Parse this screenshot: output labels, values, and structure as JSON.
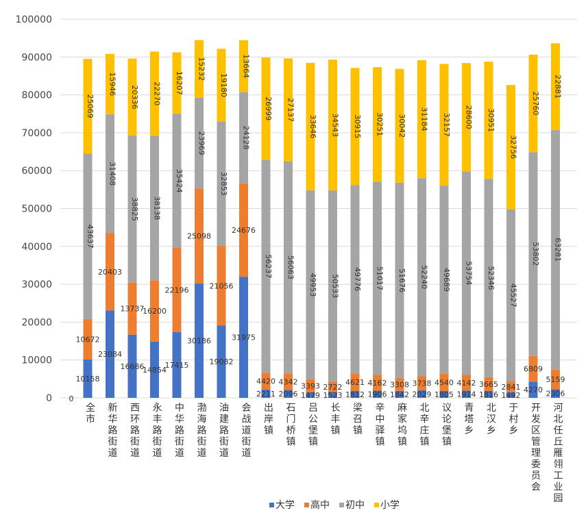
{
  "chart_data": {
    "type": "bar",
    "stacked": true,
    "title": "",
    "xlabel": "",
    "ylabel": "",
    "ylim": [
      0,
      100000
    ],
    "yticks": [
      0,
      10000,
      20000,
      30000,
      40000,
      50000,
      60000,
      70000,
      80000,
      90000,
      100000
    ],
    "grid": true,
    "legend_position": "bottom",
    "categories": [
      "全市",
      "新华路街道",
      "西环路街道",
      "永丰路街道",
      "中华路街道",
      "渤海路街道",
      "油建路街道",
      "会战道街道",
      "出岸镇",
      "石门桥镇",
      "吕公堡镇",
      "长丰镇",
      "梁召镇",
      "辛中驿镇",
      "麻家坞镇",
      "北辛庄镇",
      "议论堡镇",
      "青塔乡",
      "北汉乡",
      "于村乡",
      "开发区管理委员会",
      "河北任丘雁翎工业园"
    ],
    "series": [
      {
        "name": "大学",
        "color": "#4472c4",
        "values": [
          10158,
          23084,
          16686,
          14854,
          17415,
          30186,
          19082,
          31975,
          2211,
          2096,
          1479,
          1523,
          1812,
          1906,
          1842,
          2029,
          1805,
          1914,
          1816,
          1492,
          4270,
          2306
        ]
      },
      {
        "name": "高中",
        "color": "#ed7d31",
        "values": [
          10672,
          20403,
          13737,
          16200,
          22196,
          25098,
          21056,
          24676,
          4420,
          4342,
          3393,
          2722,
          4621,
          4162,
          3308,
          3738,
          4540,
          4142,
          3665,
          2841,
          6809,
          5159
        ]
      },
      {
        "name": "初中",
        "color": "#a5a5a5",
        "values": [
          43637,
          31408,
          38825,
          38138,
          35424,
          23969,
          32853,
          24128,
          56237,
          56063,
          49953,
          50533,
          49776,
          51017,
          51676,
          52240,
          49689,
          53754,
          52346,
          45527,
          53802,
          63281
        ]
      },
      {
        "name": "小学",
        "color": "#ffc000",
        "values": [
          25069,
          15946,
          20336,
          22270,
          16207,
          15232,
          19180,
          13664,
          26999,
          27137,
          33646,
          34543,
          30915,
          30251,
          30042,
          31184,
          32157,
          28600,
          30951,
          32756,
          25760,
          22881
        ]
      }
    ],
    "extra_labels": [
      "0"
    ]
  }
}
